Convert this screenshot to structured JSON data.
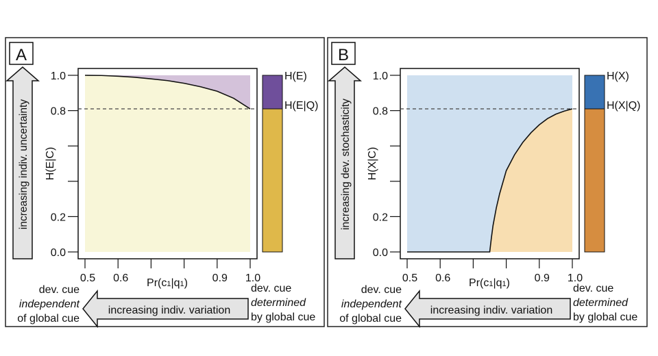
{
  "chart_data": [
    {
      "type": "area",
      "panel_label": "A",
      "ylabel": "H(E|C)",
      "xlabel_main": "Pr(c",
      "xlabel_sub1": "1",
      "xlabel_mid": "|q",
      "xlabel_sub2": "1",
      "xlabel_end": ")",
      "xlim": [
        0.5,
        1.0
      ],
      "ylim": [
        0.0,
        1.0
      ],
      "x_ticks": [
        0.5,
        0.6,
        0.7,
        0.8,
        0.9,
        1.0
      ],
      "x_tick_labels": [
        "0.5",
        "0.6",
        "",
        "",
        "0.9",
        "1.0"
      ],
      "y_ticks": [
        0.0,
        0.2,
        0.4,
        0.6,
        0.8,
        1.0
      ],
      "y_tick_labels": [
        "0.0",
        "0.2",
        "",
        "",
        "0.8",
        "1.0"
      ],
      "reference_line": 0.81,
      "curve": {
        "x": [
          0.5,
          0.55,
          0.6,
          0.65,
          0.7,
          0.75,
          0.8,
          0.85,
          0.9,
          0.95,
          1.0
        ],
        "y": [
          1.0,
          0.999,
          0.995,
          0.989,
          0.98,
          0.97,
          0.955,
          0.935,
          0.91,
          0.87,
          0.81
        ]
      },
      "region_above_color": "#d4c2da",
      "region_below_color": "#f8f6d8",
      "bar": {
        "top_value": 1.0,
        "split_value": 0.81,
        "top_label": "H(E)",
        "split_label": "H(E|Q)",
        "top_color": "#6f4f9b",
        "bottom_color": "#dfb84a"
      },
      "vertical_arrow_label": "increasing indiv. uncertainty",
      "horizontal_arrow_label": "increasing indiv. variation",
      "left_note": [
        "dev. cue",
        "independent",
        "of global cue"
      ],
      "right_note": [
        "dev. cue",
        "determined",
        "by global cue"
      ]
    },
    {
      "type": "area",
      "panel_label": "B",
      "ylabel": "H(X|C)",
      "xlabel_main": "Pr(c",
      "xlabel_sub1": "1",
      "xlabel_mid": "|q",
      "xlabel_sub2": "1",
      "xlabel_end": ")",
      "xlim": [
        0.5,
        1.0
      ],
      "ylim": [
        0.0,
        1.0
      ],
      "x_ticks": [
        0.5,
        0.6,
        0.7,
        0.8,
        0.9,
        1.0
      ],
      "x_tick_labels": [
        "0.5",
        "0.6",
        "",
        "",
        "0.9",
        "1.0"
      ],
      "y_ticks": [
        0.0,
        0.2,
        0.4,
        0.6,
        0.8,
        1.0
      ],
      "y_tick_labels": [
        "0.0",
        "0.2",
        "",
        "",
        "0.8",
        "1.0"
      ],
      "reference_line": 0.81,
      "curve": {
        "x": [
          0.5,
          0.6,
          0.7,
          0.75,
          0.755,
          0.76,
          0.77,
          0.78,
          0.8,
          0.825,
          0.85,
          0.875,
          0.9,
          0.925,
          0.95,
          0.975,
          1.0
        ],
        "y": [
          0.0,
          0.0,
          0.0,
          0.0,
          0.08,
          0.15,
          0.25,
          0.33,
          0.46,
          0.55,
          0.62,
          0.675,
          0.72,
          0.755,
          0.78,
          0.797,
          0.81
        ]
      },
      "region_above_color": "#cfe0f0",
      "region_below_color": "#f8deb1",
      "bar": {
        "top_value": 1.0,
        "split_value": 0.81,
        "top_label": "H(X)",
        "split_label": "H(X|Q)",
        "top_color": "#3872b3",
        "bottom_color": "#d68d40"
      },
      "vertical_arrow_label": "increasing dev. stochasticity",
      "horizontal_arrow_label": "increasing indiv. variation",
      "left_note": [
        "dev. cue",
        "independent",
        "of global cue"
      ],
      "right_note": [
        "dev. cue",
        "determined",
        "by global cue"
      ]
    }
  ]
}
